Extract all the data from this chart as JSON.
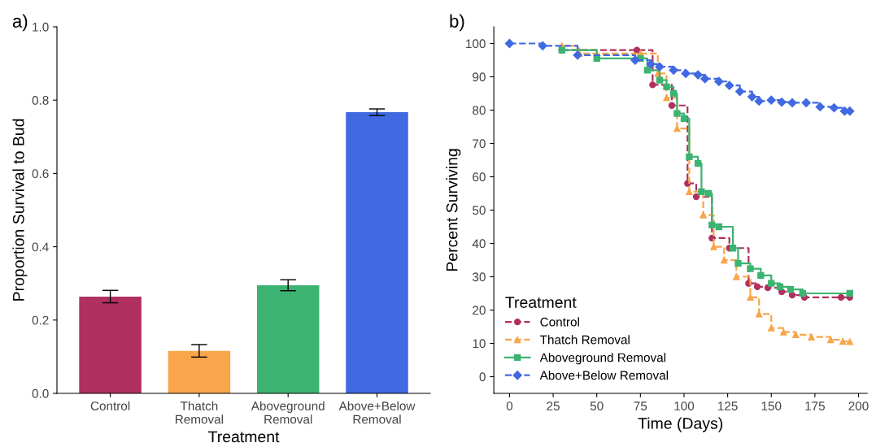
{
  "chart_data": [
    {
      "type": "bar",
      "title": "a)",
      "xlabel": "Treatment",
      "ylabel": "Proportion Survival to Bud",
      "categories": [
        "Control",
        "Thatch\nRemoval",
        "Aboveground\nRemoval",
        "Above+Below\nRemoval"
      ],
      "values": [
        0.264,
        0.116,
        0.295,
        0.767
      ],
      "errors": [
        0.017,
        0.017,
        0.015,
        0.009
      ],
      "colors": [
        "#b03060",
        "#f9a54b",
        "#3cb371",
        "#4169e1"
      ],
      "ylim": [
        0,
        1.0
      ],
      "yticks": [
        {
          "value": 0,
          "label": "0.0"
        },
        {
          "value": 0.2,
          "label": "0.2"
        },
        {
          "value": 0.4,
          "label": "0.4"
        },
        {
          "value": 0.6,
          "label": "0.6"
        },
        {
          "value": 0.8,
          "label": "0.8"
        },
        {
          "value": 1.0,
          "label": "1.0"
        }
      ],
      "grid": false
    },
    {
      "type": "step",
      "title": "b)",
      "xlabel": "Time (Days)",
      "ylabel": "Percent Surviving",
      "legend_title": "Treatment",
      "legend": "bottom left",
      "grid": false,
      "xlim": [
        -9,
        205
      ],
      "xticks": [
        0,
        25,
        50,
        75,
        100,
        125,
        150,
        175,
        200
      ],
      "ylim": [
        -5,
        105
      ],
      "yticks": [
        0,
        10,
        20,
        30,
        40,
        50,
        60,
        70,
        80,
        90,
        100
      ],
      "series": [
        {
          "name": "Control",
          "color": "#b03060",
          "marker": "circle",
          "line_style": "dashed",
          "x": [
            30,
            73,
            82,
            93,
            102,
            107,
            116,
            126,
            137,
            142,
            148,
            156,
            162,
            169,
            190,
            195
          ],
          "values": [
            98,
            98,
            87.6,
            81.4,
            58,
            54,
            41.6,
            38.6,
            28,
            27,
            26.7,
            25.5,
            24.5,
            23.8,
            23.8,
            23.8
          ]
        },
        {
          "name": "Thatch Removal",
          "color": "#f9a54b",
          "marker": "triangle",
          "line_style": "dashed",
          "x": [
            30,
            40,
            75,
            85,
            90,
            96,
            103,
            111,
            117,
            123,
            130,
            138,
            143,
            150,
            157,
            164,
            173,
            184,
            191,
            195
          ],
          "values": [
            99.3,
            97,
            97,
            91,
            83.7,
            74.5,
            55.5,
            48.5,
            39,
            35,
            30,
            23.8,
            18.8,
            14.6,
            13.4,
            12.6,
            11.9,
            11.1,
            10.6,
            10.5
          ]
        },
        {
          "name": "Aboveground Removal",
          "color": "#3cb371",
          "marker": "square",
          "line_style": "solid",
          "x": [
            30,
            50,
            75,
            79,
            86,
            90,
            94,
            96,
            100,
            103,
            108,
            110,
            114,
            116,
            120,
            128,
            131,
            138,
            144,
            150,
            155,
            161,
            168,
            195
          ],
          "values": [
            98,
            95.5,
            95.5,
            92,
            89,
            87,
            85,
            79,
            77.5,
            66,
            64,
            55.5,
            55,
            45.5,
            45,
            38.6,
            34,
            32.4,
            30.4,
            28,
            27,
            26.2,
            25,
            25
          ]
        },
        {
          "name": "Above+Below Removal",
          "color": "#4169e1",
          "marker": "diamond",
          "line_style": "dashed",
          "x": [
            0,
            19,
            39,
            72,
            81,
            86,
            94,
            101,
            108,
            112,
            120,
            126,
            132,
            139,
            143,
            150,
            156,
            162,
            170,
            178,
            186,
            192,
            195
          ],
          "values": [
            100,
            99.3,
            96.5,
            95,
            93.8,
            93,
            92,
            91,
            90.6,
            89.4,
            88.6,
            87.4,
            85.6,
            84,
            82.7,
            83,
            82.4,
            82.2,
            82.2,
            81,
            80.7,
            79.7,
            79.7
          ]
        }
      ]
    }
  ]
}
